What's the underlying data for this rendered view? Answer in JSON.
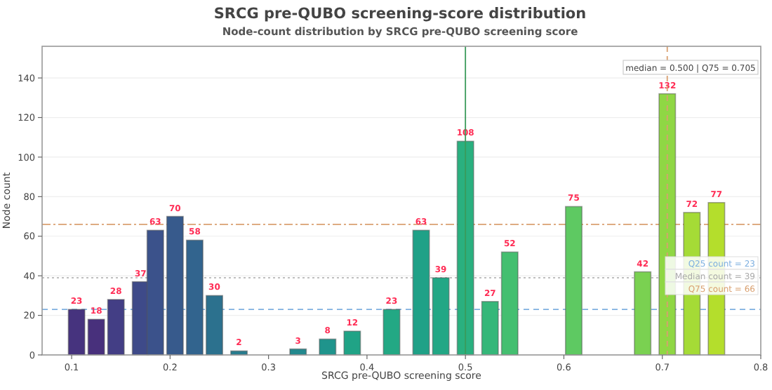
{
  "chart_data": {
    "type": "bar",
    "title": "SRCG pre-QUBO screening-score distribution",
    "subtitle": "Node-count distribution by SRCG pre-QUBO screening score",
    "xlabel": "SRCG pre-QUBO screening score",
    "ylabel": "Node count",
    "x": [
      0.105,
      0.125,
      0.145,
      0.17,
      0.185,
      0.205,
      0.225,
      0.245,
      0.27,
      0.33,
      0.36,
      0.385,
      0.425,
      0.455,
      0.475,
      0.5,
      0.525,
      0.545,
      0.61,
      0.68,
      0.705,
      0.73,
      0.755
    ],
    "values": [
      23,
      18,
      28,
      37,
      63,
      70,
      58,
      30,
      2,
      3,
      8,
      12,
      23,
      63,
      39,
      108,
      27,
      52,
      75,
      42,
      132,
      72,
      77
    ],
    "colors": [
      "#46337e",
      "#48307c",
      "#433e85",
      "#3e4a89",
      "#3b528b",
      "#375a8c",
      "#32648e",
      "#2c718e",
      "#287c8e",
      "#23898e",
      "#1f948c",
      "#20a386",
      "#23a884",
      "#1fa187",
      "#22a785",
      "#2ab07f",
      "#35b779",
      "#44bf70",
      "#5ec962",
      "#7ad151",
      "#8fd744",
      "#a5db36",
      "#b4de2c"
    ],
    "data_labels": true,
    "xlim": [
      0.07,
      0.8
    ],
    "xticks": [
      0.1,
      0.2,
      0.3,
      0.4,
      0.5,
      0.6,
      0.7,
      0.8
    ],
    "ylim": [
      0,
      156
    ],
    "yticks": [
      0,
      20,
      40,
      60,
      80,
      100,
      120,
      140
    ],
    "grid": "y",
    "ref_lines": [
      {
        "axis": "y",
        "value": 23,
        "label": "Q25 count = 23",
        "color": "#7fb0e0",
        "line_style": "dashed"
      },
      {
        "axis": "y",
        "value": 39,
        "label": "Median count = 39",
        "color": "#aaaaaa",
        "line_style": "dotted"
      },
      {
        "axis": "y",
        "value": 66,
        "label": "Q75 count = 66",
        "color": "#d9a070",
        "line_style": "dashdot"
      },
      {
        "axis": "x",
        "value": 0.5,
        "color": "#3a9a5a",
        "line_style": "solid"
      },
      {
        "axis": "x",
        "value": 0.705,
        "color": "#d9a070",
        "line_style": "dashed"
      }
    ],
    "annotations": [
      "median = 0.500 | Q75 = 0.705"
    ]
  }
}
